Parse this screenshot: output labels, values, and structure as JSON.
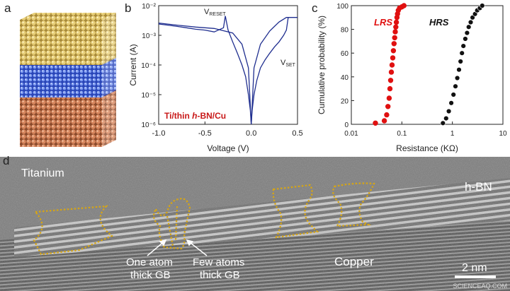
{
  "panels": {
    "a": {
      "letter": "a"
    },
    "b": {
      "letter": "b"
    },
    "c": {
      "letter": "c"
    },
    "d": {
      "letter": "d"
    }
  },
  "chart_data": [
    {
      "type": "line",
      "panel": "b",
      "title": "",
      "xlabel": "Voltage (V)",
      "ylabel": "Current (A)",
      "xlim": [
        -1.0,
        0.5
      ],
      "ylim": [
        1e-06,
        0.01
      ],
      "yscale": "log",
      "xticks": [
        "-1.0",
        "-0.5",
        "0.0",
        "0.5"
      ],
      "yticks": [
        "10⁻⁶",
        "10⁻⁵",
        "10⁻⁴",
        "10⁻³",
        "10⁻²"
      ],
      "inset_label_prefix": "Ti/thin ",
      "inset_label_italic": "h",
      "inset_label_suffix": "-BN/Cu",
      "annotations": {
        "reset_main": "V",
        "reset_sub": "RESET",
        "set_main": "V",
        "set_sub": "SET"
      },
      "series": [
        {
          "color": "#1f2e8f",
          "x": [
            -1.0,
            -0.9,
            -0.8,
            -0.7,
            -0.6,
            -0.5,
            -0.4,
            -0.3,
            -0.28,
            -0.25,
            -0.2,
            -0.15,
            -0.1,
            -0.06,
            -0.03,
            -0.01,
            0.0,
            0.01,
            0.03,
            0.06,
            0.1,
            0.15,
            0.2,
            0.25,
            0.3,
            0.35,
            0.38,
            0.4,
            0.45,
            0.5
          ],
          "y": [
            0.0024,
            0.0022,
            0.002,
            0.0018,
            0.0016,
            0.0015,
            0.0013,
            0.0018,
            0.0045,
            0.0015,
            0.0006,
            0.00025,
            0.0001,
            4e-05,
            1e-05,
            3e-06,
            1e-06,
            3e-06,
            1e-05,
            3e-05,
            8e-05,
            0.00015,
            0.00025,
            0.0004,
            0.0006,
            0.001,
            0.0015,
            0.004,
            0.004,
            0.004
          ]
        },
        {
          "color": "#1f2e8f",
          "x": [
            -1.0,
            -0.8,
            -0.6,
            -0.4,
            -0.2,
            -0.1,
            -0.03,
            0.0,
            0.03,
            0.1,
            0.2,
            0.3,
            0.38,
            0.4
          ],
          "y": [
            0.0026,
            0.0022,
            0.0019,
            0.0017,
            0.0012,
            0.0005,
            8e-05,
            1e-06,
            8e-05,
            0.0005,
            0.0014,
            0.0028,
            0.004,
            0.004
          ]
        }
      ]
    },
    {
      "type": "scatter",
      "panel": "c",
      "title": "",
      "xlabel": "Resistance (KΩ)",
      "ylabel": "Cumulative probability (%)",
      "xlim": [
        0.01,
        10
      ],
      "ylim": [
        0,
        100
      ],
      "xscale": "log",
      "xticks": [
        "0.01",
        "0.1",
        "1",
        "10"
      ],
      "yticks": [
        "0",
        "20",
        "40",
        "60",
        "80",
        "100"
      ],
      "series": [
        {
          "name": "LRS",
          "color": "#e01010",
          "x": [
            0.03,
            0.045,
            0.05,
            0.053,
            0.056,
            0.058,
            0.06,
            0.062,
            0.064,
            0.066,
            0.068,
            0.07,
            0.072,
            0.074,
            0.076,
            0.078,
            0.08,
            0.082,
            0.085,
            0.09,
            0.1,
            0.11
          ],
          "y": [
            1,
            3,
            8,
            15,
            22,
            30,
            37,
            44,
            50,
            56,
            62,
            68,
            73,
            78,
            82,
            86,
            90,
            93,
            96,
            98,
            99,
            100
          ]
        },
        {
          "name": "HRS",
          "color": "#111111",
          "x": [
            0.65,
            0.75,
            0.85,
            0.95,
            1.05,
            1.15,
            1.25,
            1.35,
            1.45,
            1.55,
            1.65,
            1.8,
            1.95,
            2.1,
            2.3,
            2.5,
            2.8,
            3.1,
            3.5,
            3.9
          ],
          "y": [
            1,
            5,
            11,
            18,
            25,
            32,
            39,
            46,
            53,
            60,
            66,
            72,
            77,
            82,
            86,
            90,
            93,
            96,
            98,
            100
          ]
        }
      ]
    }
  ],
  "micrograph": {
    "labels": {
      "titanium": "Titanium",
      "hbn": "h-BN",
      "copper": "Copper",
      "one_atom_line1": "One atom",
      "one_atom_line2": "thick GB",
      "few_atoms_line1": "Few atoms",
      "few_atoms_line2": "thick GB",
      "scale": "2 nm"
    },
    "watermark": "SCIENCEAQ.COM",
    "outline_color": "#d6a515"
  }
}
